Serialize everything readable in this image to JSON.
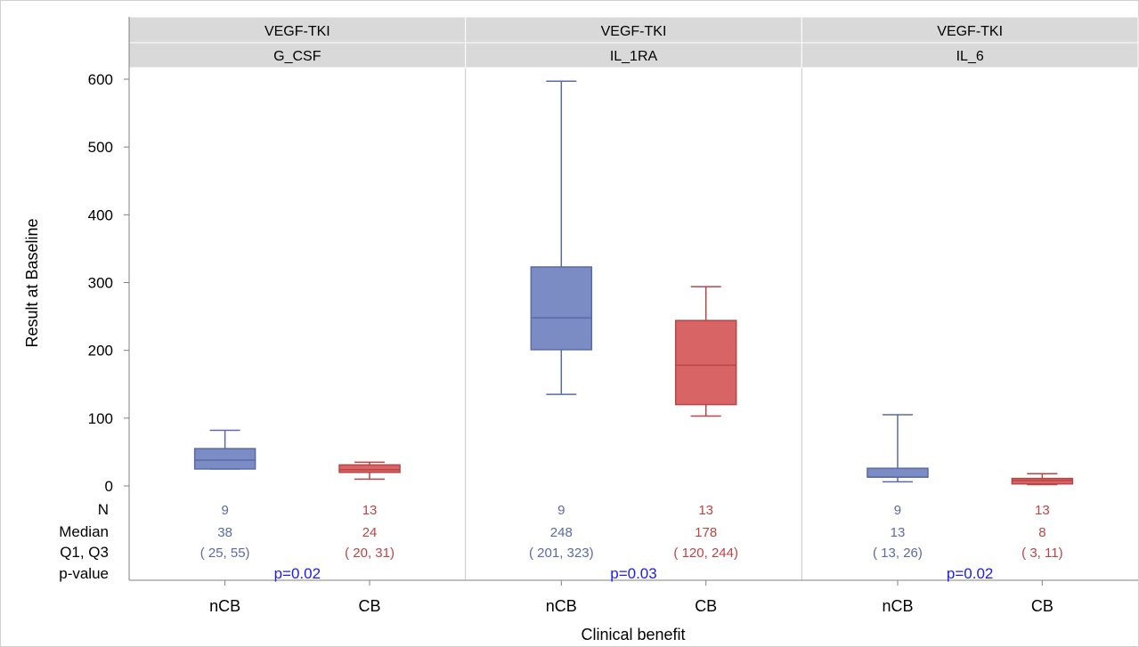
{
  "colors": {
    "ncb_fill": "#7b8bc4",
    "ncb_line": "#5a6aa8",
    "cb_fill": "#d96466",
    "cb_line": "#b94444",
    "pvalue": "#1a1aff",
    "header_bg": "#d9d9d9",
    "grid_divider": "#c8c8c8"
  },
  "chart_data": {
    "type": "boxplot",
    "ylabel": "Result at Baseline",
    "xlabel": "Clinical benefit",
    "ylim": [
      0,
      600
    ],
    "yticks": [
      0,
      100,
      200,
      300,
      400,
      500,
      600
    ],
    "table_row_labels": [
      "N",
      "Median",
      "Q1, Q3",
      "p-value"
    ],
    "panels": [
      {
        "header_top": "VEGF-TKI",
        "header_bottom": "G_CSF",
        "p_value": "p=0.02",
        "groups": [
          {
            "category": "nCB",
            "min": 25,
            "q1": 25,
            "median": 38,
            "q3": 55,
            "max": 82,
            "n": "9",
            "median_label": "38",
            "q_label": "( 25, 55)"
          },
          {
            "category": "CB",
            "min": 10,
            "q1": 20,
            "median": 24,
            "q3": 31,
            "max": 35,
            "n": "13",
            "median_label": "24",
            "q_label": "( 20, 31)"
          }
        ]
      },
      {
        "header_top": "VEGF-TKI",
        "header_bottom": "IL_1RA",
        "p_value": "p=0.03",
        "groups": [
          {
            "category": "nCB",
            "min": 135,
            "q1": 201,
            "median": 248,
            "q3": 323,
            "max": 597,
            "n": "9",
            "median_label": "248",
            "q_label": "( 201, 323)"
          },
          {
            "category": "CB",
            "min": 103,
            "q1": 120,
            "median": 178,
            "q3": 244,
            "max": 294,
            "n": "13",
            "median_label": "178",
            "q_label": "( 120, 244)"
          }
        ]
      },
      {
        "header_top": "VEGF-TKI",
        "header_bottom": "IL_6",
        "p_value": "p=0.02",
        "groups": [
          {
            "category": "nCB",
            "min": 6,
            "q1": 13,
            "median": 13,
            "q3": 26,
            "max": 105,
            "n": "9",
            "median_label": "13",
            "q_label": "( 13, 26)"
          },
          {
            "category": "CB",
            "min": 2,
            "q1": 3,
            "median": 8,
            "q3": 11,
            "max": 18,
            "n": "13",
            "median_label": "8",
            "q_label": "( 3, 11)"
          }
        ]
      }
    ]
  }
}
